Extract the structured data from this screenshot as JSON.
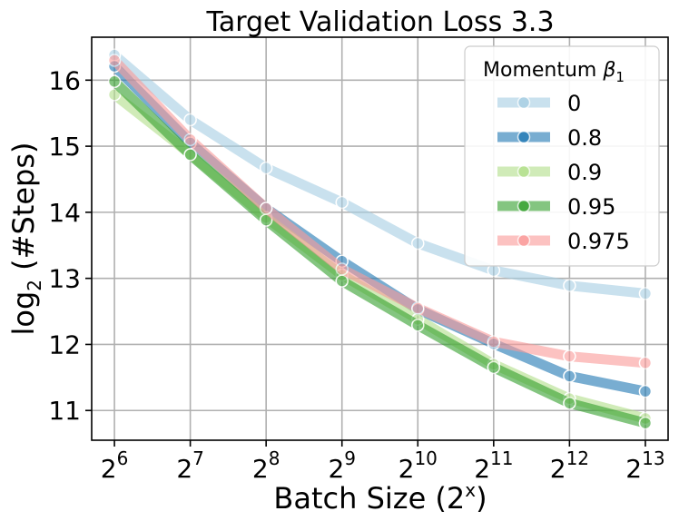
{
  "chart_data": {
    "type": "line",
    "title": "Target Validation Loss 3.3",
    "xlabel": "Batch Size (2",
    "xlabel_sup": "x",
    "xlabel_tail": ")",
    "ylabel_main": "log",
    "ylabel_sub": "2",
    "ylabel_tail": " (#Steps)",
    "x": [
      6,
      7,
      8,
      9,
      10,
      11,
      12,
      13
    ],
    "x_tick_base": "2",
    "x_tick_exponents": [
      "6",
      "7",
      "8",
      "9",
      "10",
      "11",
      "12",
      "13"
    ],
    "xlim": [
      5.7,
      13.3
    ],
    "ylim": [
      10.55,
      16.65
    ],
    "y_ticks": [
      11,
      12,
      13,
      14,
      15,
      16
    ],
    "y_tick_labels": [
      "11",
      "12",
      "13",
      "14",
      "15",
      "16"
    ],
    "grid": true,
    "legend": {
      "title_main": "Momentum ",
      "title_symbol": "β",
      "title_sub": "1",
      "placement": "top-right"
    },
    "series": [
      {
        "name": "0",
        "color": "#a6cee3",
        "values": [
          16.38,
          15.4,
          14.67,
          14.15,
          13.53,
          13.12,
          12.89,
          12.77
        ]
      },
      {
        "name": "0.8",
        "color": "#1f78b4",
        "values": [
          16.21,
          15.05,
          14.06,
          13.26,
          12.53,
          12.01,
          11.52,
          11.29
        ]
      },
      {
        "name": "0.9",
        "color": "#b2df8a",
        "values": [
          15.78,
          14.88,
          13.92,
          13.05,
          12.38,
          11.7,
          11.18,
          10.88
        ]
      },
      {
        "name": "0.95",
        "color": "#33a02c",
        "values": [
          15.98,
          14.87,
          13.88,
          12.96,
          12.29,
          11.65,
          11.11,
          10.81
        ]
      },
      {
        "name": "0.975",
        "color": "#fb9a99",
        "values": [
          16.3,
          15.1,
          14.06,
          13.14,
          12.55,
          12.04,
          11.82,
          11.72
        ]
      }
    ]
  }
}
